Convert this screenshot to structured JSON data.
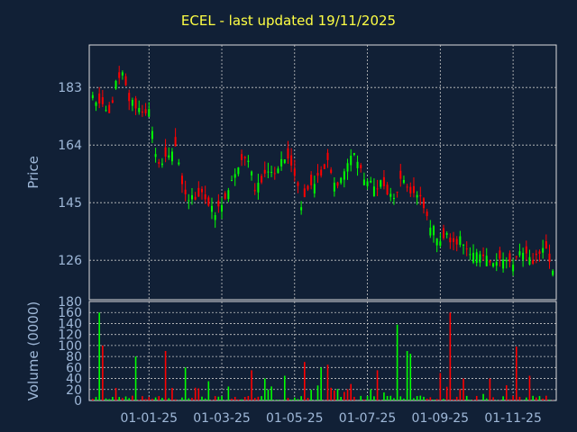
{
  "chart_data": {
    "type": "candlestick",
    "title": "ECEL - last updated 19/11/2025",
    "colors": {
      "background": "#112036",
      "frame": "#dddddd",
      "grid": "#c8c8c8",
      "up": "#00ff00",
      "down": "#ff0000",
      "text": "#9fb8d8",
      "title": "#ffff44"
    },
    "price_panel": {
      "ylabel": "Price",
      "yticks": [
        126,
        145,
        164,
        183
      ],
      "ylim": [
        113,
        197
      ]
    },
    "volume_panel": {
      "ylabel": "Volume (0000)",
      "yticks": [
        0,
        20,
        40,
        60,
        80,
        100,
        120,
        140,
        160,
        180
      ],
      "ylim": [
        0,
        180
      ],
      "grid": true
    },
    "xticks": [
      "01-01-25",
      "01-03-25",
      "01-05-25",
      "01-07-25",
      "01-09-25",
      "01-11-25"
    ],
    "xtick_positions": [
      17,
      39,
      61,
      83,
      105,
      127
    ],
    "n_bars": 140,
    "close_anchors": [
      [
        0,
        180
      ],
      [
        3,
        176
      ],
      [
        5,
        174
      ],
      [
        7,
        184
      ],
      [
        9,
        187
      ],
      [
        11,
        179
      ],
      [
        14,
        176
      ],
      [
        17,
        175
      ],
      [
        19,
        160
      ],
      [
        21,
        158
      ],
      [
        23,
        161
      ],
      [
        25,
        164
      ],
      [
        27,
        150
      ],
      [
        29,
        146
      ],
      [
        31,
        147
      ],
      [
        33,
        149
      ],
      [
        35,
        144
      ],
      [
        37,
        141
      ],
      [
        39,
        145
      ],
      [
        41,
        148
      ],
      [
        43,
        155
      ],
      [
        45,
        158
      ],
      [
        47,
        160
      ],
      [
        49,
        150
      ],
      [
        51,
        152
      ],
      [
        53,
        156
      ],
      [
        55,
        155
      ],
      [
        57,
        158
      ],
      [
        59,
        161
      ],
      [
        61,
        155
      ],
      [
        63,
        145
      ],
      [
        65,
        150
      ],
      [
        67,
        152
      ],
      [
        69,
        154
      ],
      [
        71,
        158
      ],
      [
        73,
        151
      ],
      [
        75,
        153
      ],
      [
        77,
        158
      ],
      [
        79,
        162
      ],
      [
        81,
        155
      ],
      [
        83,
        152
      ],
      [
        85,
        150
      ],
      [
        87,
        152
      ],
      [
        89,
        148
      ],
      [
        91,
        146
      ],
      [
        93,
        152
      ],
      [
        95,
        150
      ],
      [
        97,
        148
      ],
      [
        99,
        146
      ],
      [
        101,
        140
      ],
      [
        103,
        136
      ],
      [
        105,
        133
      ],
      [
        107,
        134
      ],
      [
        109,
        131
      ],
      [
        111,
        133
      ],
      [
        113,
        130
      ],
      [
        115,
        129
      ],
      [
        117,
        127
      ],
      [
        119,
        126
      ],
      [
        121,
        124
      ],
      [
        123,
        128
      ],
      [
        125,
        126
      ],
      [
        127,
        124
      ],
      [
        129,
        129
      ],
      [
        131,
        127
      ],
      [
        133,
        126
      ],
      [
        135,
        129
      ],
      [
        137,
        130
      ],
      [
        139,
        122
      ]
    ],
    "volume_spikes": [
      [
        2,
        160
      ],
      [
        3,
        100
      ],
      [
        13,
        80
      ],
      [
        22,
        90
      ],
      [
        28,
        60
      ],
      [
        35,
        35
      ],
      [
        48,
        55
      ],
      [
        52,
        40
      ],
      [
        58,
        45
      ],
      [
        64,
        70
      ],
      [
        69,
        60
      ],
      [
        71,
        65
      ],
      [
        78,
        30
      ],
      [
        86,
        55
      ],
      [
        92,
        138
      ],
      [
        95,
        90
      ],
      [
        96,
        85
      ],
      [
        105,
        50
      ],
      [
        108,
        160
      ],
      [
        112,
        40
      ],
      [
        120,
        40
      ],
      [
        128,
        98
      ],
      [
        132,
        45
      ]
    ]
  }
}
